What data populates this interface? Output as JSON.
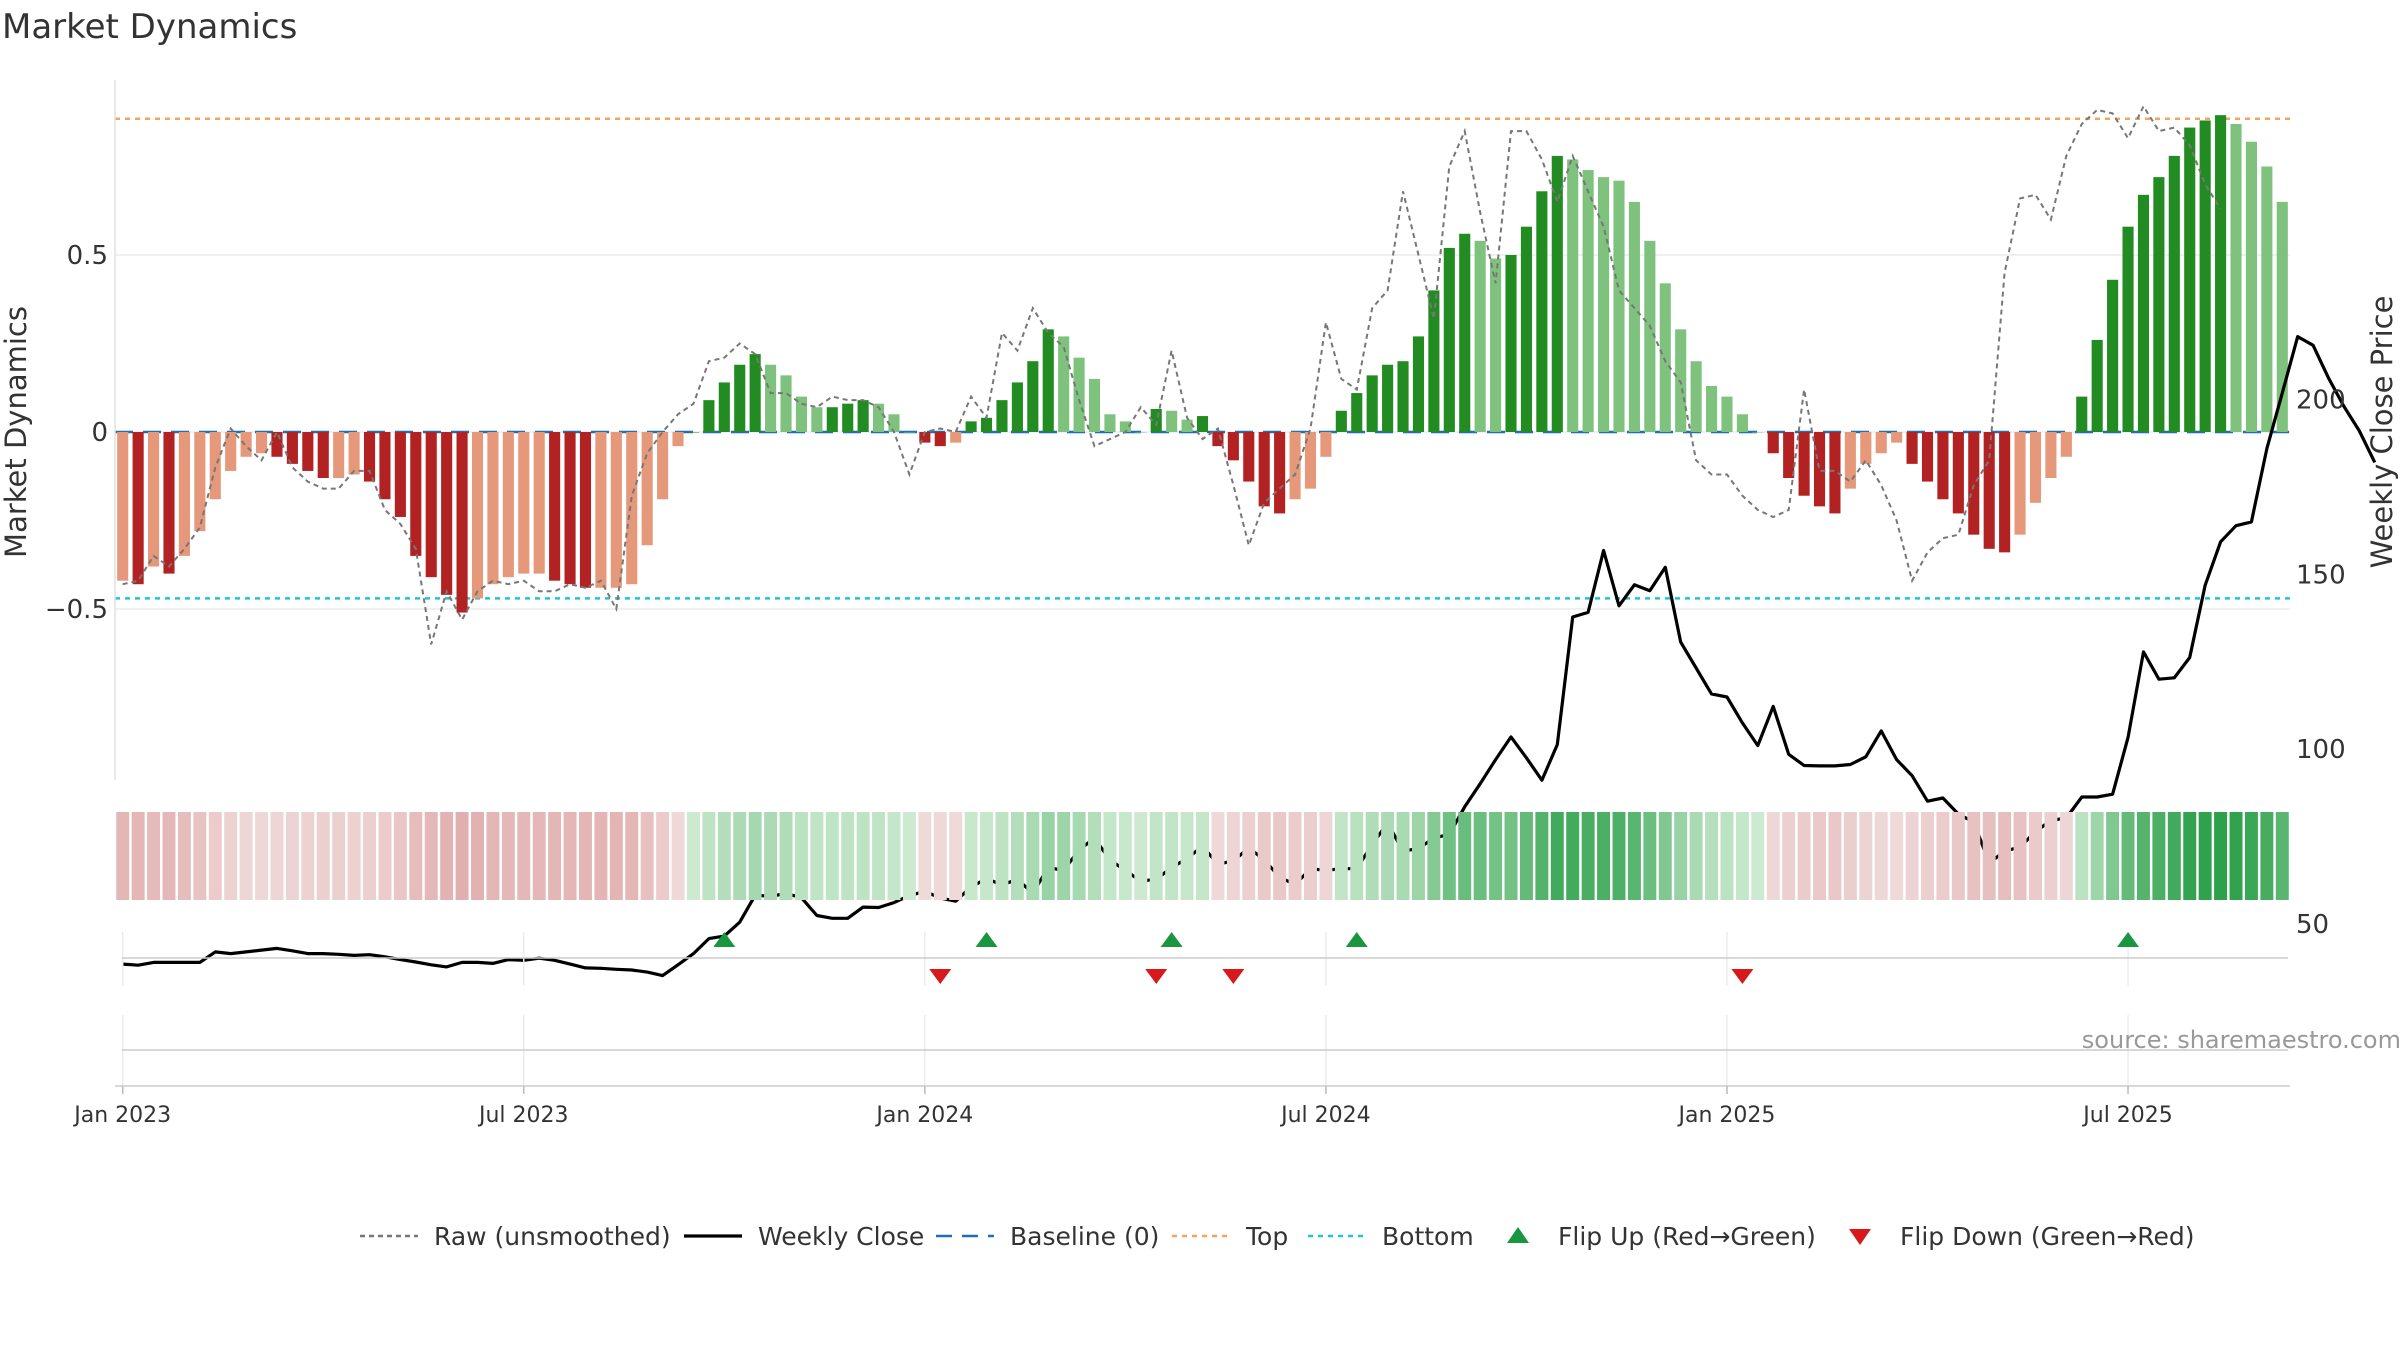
{
  "chart_data": {
    "type": "bar",
    "title": "Market Dynamics",
    "source": "source: sharemaestro.com",
    "ylabel_left": "Market Dynamics",
    "ylabel_right": "Weekly Close Price",
    "ylim_left": [
      -0.98,
      0.98
    ],
    "ylim_right": [
      18,
      225
    ],
    "left_ticks": [
      {
        "v": 0.5,
        "label": "0.5"
      },
      {
        "v": 0,
        "label": "0"
      },
      {
        "v": -0.5,
        "label": "−0.5"
      }
    ],
    "right_ticks": [
      {
        "v": 200,
        "label": "200"
      },
      {
        "v": 150,
        "label": "150"
      },
      {
        "v": 100,
        "label": "100"
      },
      {
        "v": 50,
        "label": "50"
      }
    ],
    "x_ticks": [
      {
        "week": 1,
        "label": "Jan 2023"
      },
      {
        "week": 27,
        "label": "Jul 2023"
      },
      {
        "week": 53,
        "label": "Jan 2024"
      },
      {
        "week": 79,
        "label": "Jul 2024"
      },
      {
        "week": 105,
        "label": "Jan 2025"
      },
      {
        "week": 131,
        "label": "Jul 2025"
      }
    ],
    "reference_lines": {
      "top": 0.885,
      "bottom": -0.47,
      "baseline": 0
    },
    "smoothed": [
      -0.42,
      -0.43,
      -0.38,
      -0.4,
      -0.35,
      -0.28,
      -0.19,
      -0.11,
      -0.07,
      -0.06,
      -0.07,
      -0.09,
      -0.11,
      -0.13,
      -0.13,
      -0.12,
      -0.14,
      -0.19,
      -0.24,
      -0.35,
      -0.41,
      -0.46,
      -0.51,
      -0.47,
      -0.43,
      -0.41,
      -0.4,
      -0.4,
      -0.42,
      -0.43,
      -0.44,
      -0.44,
      -0.44,
      -0.43,
      -0.32,
      -0.19,
      -0.04,
      0,
      0.09,
      0.14,
      0.19,
      0.22,
      0.19,
      0.16,
      0.1,
      0.07,
      0.07,
      0.08,
      0.09,
      0.08,
      0.05,
      0,
      -0.03,
      -0.04,
      -0.03,
      0.03,
      0.04,
      0.09,
      0.14,
      0.2,
      0.29,
      0.27,
      0.21,
      0.15,
      0.05,
      0.03,
      0,
      0.065,
      0.06,
      0.035,
      0.045,
      -0.04,
      -0.08,
      -0.14,
      -0.21,
      -0.23,
      -0.19,
      -0.16,
      -0.07,
      0.06,
      0.11,
      0.16,
      0.19,
      0.2,
      0.27,
      0.4,
      0.52,
      0.56,
      0.54,
      0.49,
      0.5,
      0.58,
      0.68,
      0.78,
      0.77,
      0.74,
      0.72,
      0.71,
      0.65,
      0.54,
      0.42,
      0.29,
      0.2,
      0.13,
      0.1,
      0.05,
      0,
      -0.06,
      -0.13,
      -0.18,
      -0.21,
      -0.23,
      -0.16,
      -0.09,
      -0.06,
      -0.03,
      -0.09,
      -0.14,
      -0.19,
      -0.23,
      -0.29,
      -0.33,
      -0.34,
      -0.29,
      -0.2,
      -0.13,
      -0.07,
      0.1,
      0.26,
      0.43,
      0.58,
      0.67,
      0.72,
      0.78,
      0.86,
      0.88,
      0.895,
      0.87,
      0.82,
      0.75,
      0.65
    ],
    "raw": [
      -0.43,
      -0.42,
      -0.35,
      -0.38,
      -0.33,
      -0.27,
      -0.1,
      0.01,
      -0.04,
      -0.08,
      0,
      -0.1,
      -0.14,
      -0.16,
      -0.16,
      -0.11,
      -0.11,
      -0.22,
      -0.26,
      -0.33,
      -0.6,
      -0.45,
      -0.53,
      -0.45,
      -0.42,
      -0.43,
      -0.42,
      -0.45,
      -0.45,
      -0.43,
      -0.44,
      -0.42,
      -0.5,
      -0.18,
      -0.06,
      0,
      0.05,
      0.08,
      0.2,
      0.21,
      0.25,
      0.22,
      0.11,
      0.11,
      0.08,
      0.07,
      0.1,
      0.09,
      0.09,
      0.07,
      0,
      -0.12,
      0,
      0.01,
      0,
      0.1,
      0.04,
      0.28,
      0.23,
      0.35,
      0.28,
      0.24,
      0.09,
      -0.04,
      -0.02,
      0,
      0.07,
      0.02,
      0.23,
      0.04,
      -0.02,
      0.01,
      -0.15,
      -0.32,
      -0.2,
      -0.16,
      -0.12,
      0.01,
      0.31,
      0.15,
      0.12,
      0.35,
      0.4,
      0.68,
      0.5,
      0.32,
      0.75,
      0.85,
      0.62,
      0.42,
      0.85,
      0.85,
      0.77,
      0.65,
      0.78,
      0.68,
      0.58,
      0.4,
      0.35,
      0.3,
      0.2,
      0.14,
      -0.08,
      -0.12,
      -0.12,
      -0.18,
      -0.22,
      -0.24,
      -0.22,
      0.12,
      -0.11,
      -0.11,
      -0.14,
      -0.08,
      -0.15,
      -0.25,
      -0.42,
      -0.34,
      -0.3,
      -0.29,
      -0.15,
      -0.08,
      0.45,
      0.66,
      0.67,
      0.6,
      0.78,
      0.87,
      0.91,
      0.9,
      0.83,
      0.92,
      0.85,
      0.86,
      0.81,
      0.7,
      0.63
    ],
    "weekly_close": [
      38.5,
      38.2,
      39.0,
      39.0,
      39.0,
      39.0,
      42.0,
      41.5,
      42.0,
      42.5,
      43.0,
      42.3,
      41.5,
      41.5,
      41.3,
      41.0,
      41.2,
      40.6,
      39.8,
      39.1,
      38.3,
      37.7,
      39.0,
      39.0,
      38.7,
      39.8,
      39.6,
      40.2,
      39.6,
      38.5,
      37.4,
      37.3,
      37.0,
      36.8,
      36.2,
      35.2,
      38.3,
      41.5,
      45.8,
      46.5,
      50.5,
      58.2,
      57.9,
      58.7,
      57.5,
      52.4,
      51.6,
      51.6,
      54.8,
      54.7,
      56.1,
      58.1,
      59.3,
      57.4,
      56.5,
      60.6,
      62.9,
      61.2,
      62.7,
      58.8,
      66.1,
      65.3,
      71.2,
      74.5,
      68.3,
      65.3,
      62.2,
      62.8,
      66.1,
      68.7,
      72.2,
      67.1,
      68.0,
      71.8,
      68.3,
      63.4,
      61.2,
      65.8,
      65.3,
      65.8,
      65.8,
      72.7,
      78.9,
      70.8,
      71.6,
      74.6,
      75.6,
      83.5,
      90.1,
      97.0,
      103.5,
      97.5,
      91.1,
      101.3,
      137.8,
      139.1,
      156.8,
      141.0,
      147.0,
      145.3,
      152.0,
      130.6,
      123.2,
      115.8,
      114.9,
      107.5,
      101.0,
      112.2,
      98.5,
      95.3,
      95.2,
      95.2,
      95.6,
      97.8,
      105.2,
      97.0,
      92.4,
      85.1,
      86.0,
      81.4,
      79.1,
      67.4,
      70.8,
      72.0,
      76.4,
      79.6,
      80.3,
      86.3,
      86.3,
      87.1,
      103.3,
      127.8,
      120.0,
      120.4,
      126.2,
      146.9,
      159.3,
      163.9,
      165.0,
      186.0,
      201.9,
      218.0,
      215.5,
      206.1,
      198.0,
      191.0,
      182.0
    ],
    "flips_up": [
      40,
      57,
      69,
      81,
      131
    ],
    "flips_down": [
      54,
      68,
      73,
      106
    ],
    "colors": {
      "green_strong": "#228b22",
      "green_light": "#7ec27e",
      "red_strong": "#b22222",
      "red_light": "#e5987a",
      "top_line": "#f4a460",
      "bottom_line": "#20c4d4",
      "baseline": "#1f6fb4",
      "close_line": "#000000",
      "raw_line": "#777777",
      "flip_up": "#1a9641",
      "flip_down": "#d7191c"
    }
  },
  "legend": {
    "raw": "Raw (unsmoothed)",
    "close": "Weekly Close",
    "baseline": "Baseline (0)",
    "top": "Top",
    "bottom": "Bottom",
    "flip_up": "Flip Up (Red→Green)",
    "flip_down": "Flip Down (Green→Red)"
  }
}
